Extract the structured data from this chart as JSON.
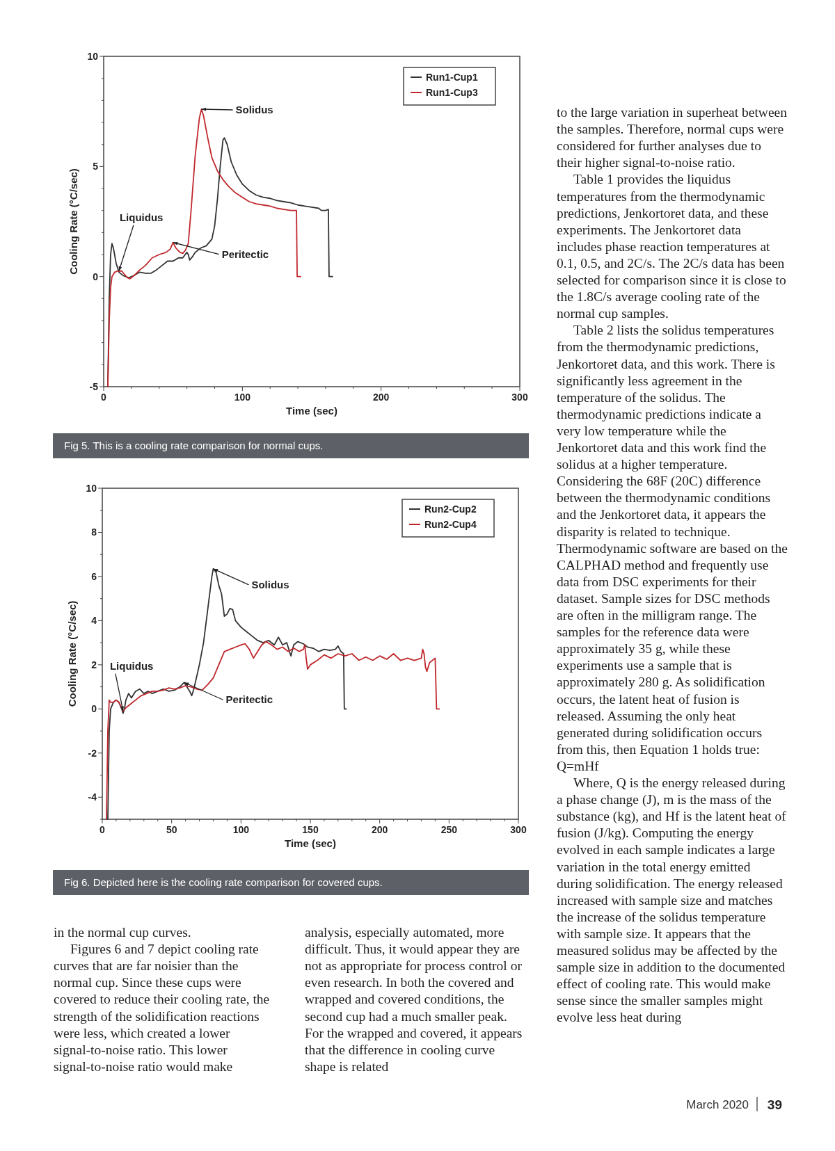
{
  "chart_data": [
    {
      "type": "line",
      "xlabel": "Time (sec)",
      "ylabel": "Cooling Rate (°C/sec)",
      "xlim": [
        0,
        300
      ],
      "ylim": [
        -5,
        10
      ],
      "xticks": [
        0,
        {
          "value": 20,
          "label": null
        },
        {
          "value": 40,
          "label": null
        },
        {
          "value": 60,
          "label": null
        },
        {
          "value": 80,
          "label": null
        },
        100,
        {
          "value": 120,
          "label": null
        },
        {
          "value": 140,
          "label": null
        },
        {
          "value": 160,
          "label": null
        },
        {
          "value": 180,
          "label": null
        },
        200,
        {
          "value": 220,
          "label": null
        },
        {
          "value": 240,
          "label": null
        },
        {
          "value": 260,
          "label": null
        },
        {
          "value": 280,
          "label": null
        },
        300
      ],
      "yticks": [
        -5,
        {
          "value": -4,
          "label": null
        },
        {
          "value": -3,
          "label": null
        },
        {
          "value": -2,
          "label": null
        },
        {
          "value": -1,
          "label": null
        },
        0,
        {
          "value": 1,
          "label": null
        },
        {
          "value": 2,
          "label": null
        },
        {
          "value": 3,
          "label": null
        },
        {
          "value": 4,
          "label": null
        },
        5,
        {
          "value": 6,
          "label": null
        },
        {
          "value": 7,
          "label": null
        },
        {
          "value": 8,
          "label": null
        },
        {
          "value": 9,
          "label": null
        },
        10
      ],
      "legend": "top right",
      "grid": false,
      "marker": "none",
      "line_style": "solid",
      "series": [
        {
          "name": "Run1-Cup1",
          "color": "#333333",
          "x": [
            3,
            4,
            5,
            6,
            7,
            9,
            11,
            14,
            18,
            22,
            26,
            30,
            34,
            38,
            42,
            46,
            50,
            54,
            57,
            60,
            61,
            62,
            64,
            66,
            70,
            74,
            78,
            80,
            82,
            84,
            86,
            87,
            89,
            92,
            96,
            100,
            105,
            110,
            115,
            120,
            125,
            130,
            135,
            140,
            145,
            150,
            155,
            157,
            160,
            162,
            162.5,
            165
          ],
          "values": [
            -5,
            -1,
            1,
            1.5,
            1.3,
            0.6,
            0.2,
            0.05,
            -0.05,
            0.05,
            0.2,
            0.15,
            0.15,
            0.3,
            0.5,
            0.7,
            0.7,
            0.85,
            0.85,
            1.1,
            1,
            0.75,
            0.9,
            1.1,
            1.3,
            1.4,
            1.7,
            2.3,
            3.5,
            5,
            6.2,
            6.3,
            6,
            5.2,
            4.6,
            4.2,
            3.9,
            3.7,
            3.6,
            3.55,
            3.45,
            3.4,
            3.35,
            3.25,
            3.2,
            3.15,
            3.1,
            3,
            3,
            3.05,
            0,
            0
          ]
        },
        {
          "name": "Run1-Cup3",
          "color": "#c0282d",
          "x": [
            3,
            4,
            5,
            6,
            8,
            10,
            13,
            15,
            17,
            19,
            22,
            26,
            30,
            35,
            40,
            45,
            48,
            50,
            52,
            55,
            57,
            59,
            61,
            63,
            66,
            69,
            70.5,
            72,
            75,
            78,
            82,
            86,
            90,
            95,
            100,
            105,
            110,
            115,
            120,
            125,
            130,
            135,
            139,
            139.5,
            142
          ],
          "values": [
            -5,
            -2,
            -0.5,
            0,
            0.2,
            0.25,
            0.25,
            0.1,
            -0.05,
            -0.1,
            0.05,
            0.3,
            0.5,
            0.85,
            1,
            1.1,
            1.25,
            1.55,
            1.3,
            1.1,
            1.05,
            1.2,
            1.5,
            3,
            5.5,
            7.2,
            7.6,
            7.3,
            6.3,
            5.4,
            4.8,
            4.4,
            4.1,
            3.8,
            3.6,
            3.4,
            3.3,
            3.25,
            3.2,
            3.1,
            3.05,
            3,
            3,
            0,
            0
          ]
        }
      ],
      "annotations": [
        {
          "text": "Solidus",
          "x": 70.5,
          "y": 7.6
        },
        {
          "text": "Liquidus",
          "x": 11,
          "y": 0.25
        },
        {
          "text": "Peritectic",
          "x": 50,
          "y": 1.55
        },
        "Fig 5. This is a cooling rate comparison for normal cups."
      ]
    },
    {
      "type": "line",
      "xlabel": "Time (sec)",
      "ylabel": "Cooling Rate (°C/sec)",
      "xlim": [
        0,
        300
      ],
      "ylim": [
        -5,
        10
      ],
      "xticks": [
        0,
        {
          "value": 10,
          "label": null
        },
        {
          "value": 20,
          "label": null
        },
        {
          "value": 30,
          "label": null
        },
        {
          "value": 40,
          "label": null
        },
        50,
        {
          "value": 60,
          "label": null
        },
        {
          "value": 70,
          "label": null
        },
        {
          "value": 80,
          "label": null
        },
        {
          "value": 90,
          "label": null
        },
        100,
        {
          "value": 110,
          "label": null
        },
        {
          "value": 120,
          "label": null
        },
        {
          "value": 130,
          "label": null
        },
        {
          "value": 140,
          "label": null
        },
        150,
        {
          "value": 160,
          "label": null
        },
        {
          "value": 170,
          "label": null
        },
        {
          "value": 180,
          "label": null
        },
        {
          "value": 190,
          "label": null
        },
        200,
        {
          "value": 210,
          "label": null
        },
        {
          "value": 220,
          "label": null
        },
        {
          "value": 230,
          "label": null
        },
        {
          "value": 240,
          "label": null
        },
        250,
        {
          "value": 260,
          "label": null
        },
        {
          "value": 270,
          "label": null
        },
        {
          "value": 280,
          "label": null
        },
        {
          "value": 290,
          "label": null
        },
        300
      ],
      "yticks": [
        {
          "value": -5,
          "label": null
        },
        -4,
        {
          "value": -3,
          "label": null
        },
        -2,
        {
          "value": -1,
          "label": null
        },
        0,
        {
          "value": 1,
          "label": null
        },
        2,
        {
          "value": 3,
          "label": null
        },
        4,
        {
          "value": 5,
          "label": null
        },
        6,
        {
          "value": 7,
          "label": null
        },
        8,
        {
          "value": 9,
          "label": null
        },
        10
      ],
      "legend": "top right",
      "grid": false,
      "marker": "none",
      "line_style": "solid",
      "series": [
        {
          "name": "Run2-Cup2",
          "color": "#333333",
          "x": [
            4,
            5,
            6,
            8,
            10,
            12,
            14,
            15,
            16,
            17,
            19,
            21,
            24,
            27,
            30,
            33,
            36,
            40,
            44,
            48,
            52,
            56,
            59,
            61,
            63,
            64.5,
            66,
            70,
            73,
            76,
            79,
            80,
            82,
            84,
            86,
            88,
            90,
            92,
            94,
            96,
            100,
            104,
            108,
            112,
            116,
            120,
            124,
            127,
            130,
            133,
            136,
            138,
            141,
            145,
            148,
            152,
            156,
            160,
            164,
            168,
            170,
            172,
            174,
            174.5,
            176
          ],
          "values": [
            -5,
            -1,
            0,
            0.3,
            0.4,
            0.3,
            0,
            -0.2,
            0,
            0.4,
            0.7,
            0.5,
            0.8,
            0.9,
            0.7,
            0.8,
            0.7,
            0.8,
            0.9,
            0.8,
            0.85,
            1,
            1.2,
            1,
            0.8,
            0.6,
            0.9,
            2,
            3,
            4.5,
            6,
            6.35,
            6.2,
            5.6,
            5.2,
            4.2,
            4.3,
            4.55,
            4.5,
            4,
            3.7,
            3.5,
            3.3,
            3.1,
            3,
            3.1,
            2.9,
            3.25,
            2.9,
            3,
            2.4,
            2.9,
            3.05,
            2.95,
            2.8,
            2.75,
            2.6,
            2.7,
            2.65,
            2.7,
            2.85,
            2.6,
            2.5,
            0,
            0
          ]
        },
        {
          "name": "Run2-Cup4",
          "color": "#c0282d",
          "x": [
            3,
            4,
            5,
            6,
            8,
            10,
            12,
            14,
            15,
            17,
            20,
            24,
            28,
            32,
            36,
            40,
            44,
            48,
            52,
            56,
            60,
            64,
            68,
            72,
            76,
            80,
            84,
            88,
            92,
            96,
            100,
            103,
            106,
            109,
            112,
            115,
            118,
            122,
            126,
            130,
            134,
            138,
            142,
            145,
            146,
            147,
            148,
            150,
            155,
            160,
            165,
            170,
            175,
            180,
            185,
            190,
            195,
            200,
            205,
            210,
            215,
            220,
            225,
            230,
            231,
            232,
            233,
            234,
            236,
            240,
            241,
            243
          ],
          "values": [
            -5,
            -1,
            0.4,
            0.3,
            0.3,
            0.4,
            0.3,
            0.05,
            -0.1,
            0.05,
            0.2,
            0.4,
            0.6,
            0.7,
            0.8,
            0.8,
            0.85,
            0.95,
            0.9,
            0.95,
            1.05,
            1,
            0.9,
            0.85,
            1.1,
            1.4,
            2,
            2.6,
            2.7,
            2.8,
            2.9,
            2.95,
            2.7,
            2.3,
            2.6,
            2.9,
            3.05,
            2.9,
            2.7,
            2.8,
            2.6,
            2.75,
            2.6,
            2.7,
            2.9,
            2.3,
            1.8,
            2,
            2.2,
            2.45,
            2.3,
            2.5,
            2.4,
            2.5,
            2.2,
            2.35,
            2.2,
            2.4,
            2.25,
            2.5,
            2.2,
            2.3,
            2.2,
            2.3,
            2.7,
            2.5,
            1.9,
            1.7,
            2.1,
            2.3,
            0,
            0
          ]
        }
      ],
      "annotations": [
        {
          "text": "Solidus",
          "x": 80,
          "y": 6.35
        },
        {
          "text": "Liquidus",
          "x": 15,
          "y": -0.1
        },
        {
          "text": "Peritectic",
          "x": 59,
          "y": 1.2
        },
        "Fig 6. Depicted here is the cooling rate comparison for covered cups."
      ]
    },
    {
      "type": "other",
      "annotations": [
        "in the normal cup curves.",
        "Figures 6 and 7 depict cooling rate curves that are far noisier than the normal cup. Since these cups were covered to reduce their cooling rate, the strength of the solidification reactions were less, which created a lower signal-to-noise ratio. This lower signal-to-noise ratio would make",
        "analysis, especially automated, more difficult. Thus, it would appear they are not as appropriate for process control or even research. In both the covered and wrapped and covered conditions, the second cup had a much smaller peak. For the wrapped and covered, it appears that the difference in cooling curve shape is related",
        "to the large variation in superheat between the samples. Therefore, normal cups were considered for further analyses due to their higher signal-to-noise ratio.",
        "Table 1 provides the liquidus temperatures from the thermodynamic predictions, Jenkortoret data, and these experiments. The Jenkortoret data includes phase reaction temperatures at 0.1, 0.5, and 2C/s. The 2C/s data has been selected for comparison since it is close to the 1.8C/s average cooling rate of the normal cup samples.",
        "Table 2 lists the solidus temperatures from the thermodynamic predictions, Jenkortoret data, and this work. There is significantly less agreement in the temperature of the solidus. The thermodynamic predictions indicate a very low temperature while the Jenkortoret data and this work find the solidus at a higher temperature. Considering the 68F (20C) difference between the thermodynamic conditions and the Jenkortoret data, it appears the disparity is related to technique. Thermodynamic software are based on the CALPHAD method and frequently use data from DSC experiments for their dataset. Sample sizes for DSC methods are often in the milligram range. The samples for the reference data were approximately 35 g, while these experiments use a sample that is approximately 280 g. As solidification occurs, the latent heat of fusion is released. Assuming the only heat generated during solidification occurs from this, then Equation 1 holds true: Q=mHf",
        "Where, Q is the energy released during a phase change (J), m is the mass of the substance (kg), and Hf is the latent heat of fusion (J/kg). Computing the energy evolved in each sample indicates a large variation in the total energy emitted during solidification. The energy released increased with sample size and matches the increase of the solidus temperature with sample size. It appears that the measured solidus may be affected by the sample size in addition to the documented effect of cooling rate. This would make sense since the smaller samples might evolve less heat during",
        "March 2020",
        "39"
      ]
    }
  ]
}
